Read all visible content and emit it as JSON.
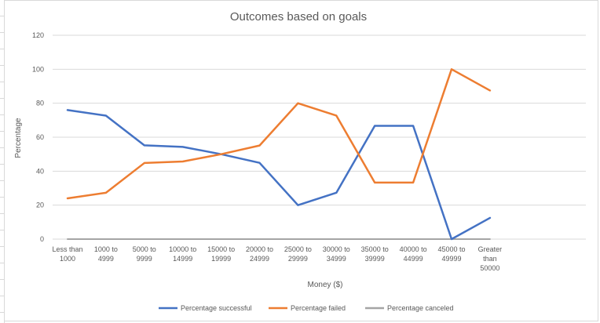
{
  "chart_data": {
    "type": "line",
    "title": "Outcomes based on goals",
    "xlabel": "Money ($)",
    "ylabel": "Percentage",
    "ylim": [
      0,
      120
    ],
    "ystep": 20,
    "grid": true,
    "legend_position": "bottom",
    "categories": [
      [
        "Less than",
        "1000"
      ],
      [
        "1000 to",
        "4999"
      ],
      [
        "5000 to",
        "9999"
      ],
      [
        "10000 to",
        "14999"
      ],
      [
        "15000 to",
        "19999"
      ],
      [
        "20000 to",
        "24999"
      ],
      [
        "25000 to",
        "29999"
      ],
      [
        "30000 to",
        "34999"
      ],
      [
        "35000 to",
        "39999"
      ],
      [
        "40000 to",
        "44999"
      ],
      [
        "45000 to",
        "49999"
      ],
      [
        "Greater",
        "than",
        "50000"
      ]
    ],
    "series": [
      {
        "name": "Percentage successful",
        "color": "#4472C4",
        "values": [
          76,
          72.7,
          55.2,
          54.3,
          50,
          44.9,
          20,
          27.3,
          66.7,
          66.7,
          0,
          12.5
        ]
      },
      {
        "name": "Percentage failed",
        "color": "#ED7D31",
        "values": [
          24,
          27.3,
          44.8,
          45.7,
          50,
          55.1,
          80,
          72.7,
          33.3,
          33.3,
          100,
          87.5
        ]
      },
      {
        "name": "Percentage canceled",
        "color": "#A5A5A5",
        "values": [
          0,
          0,
          0,
          0,
          0,
          0,
          0,
          0,
          0,
          0,
          0,
          0
        ]
      }
    ]
  }
}
